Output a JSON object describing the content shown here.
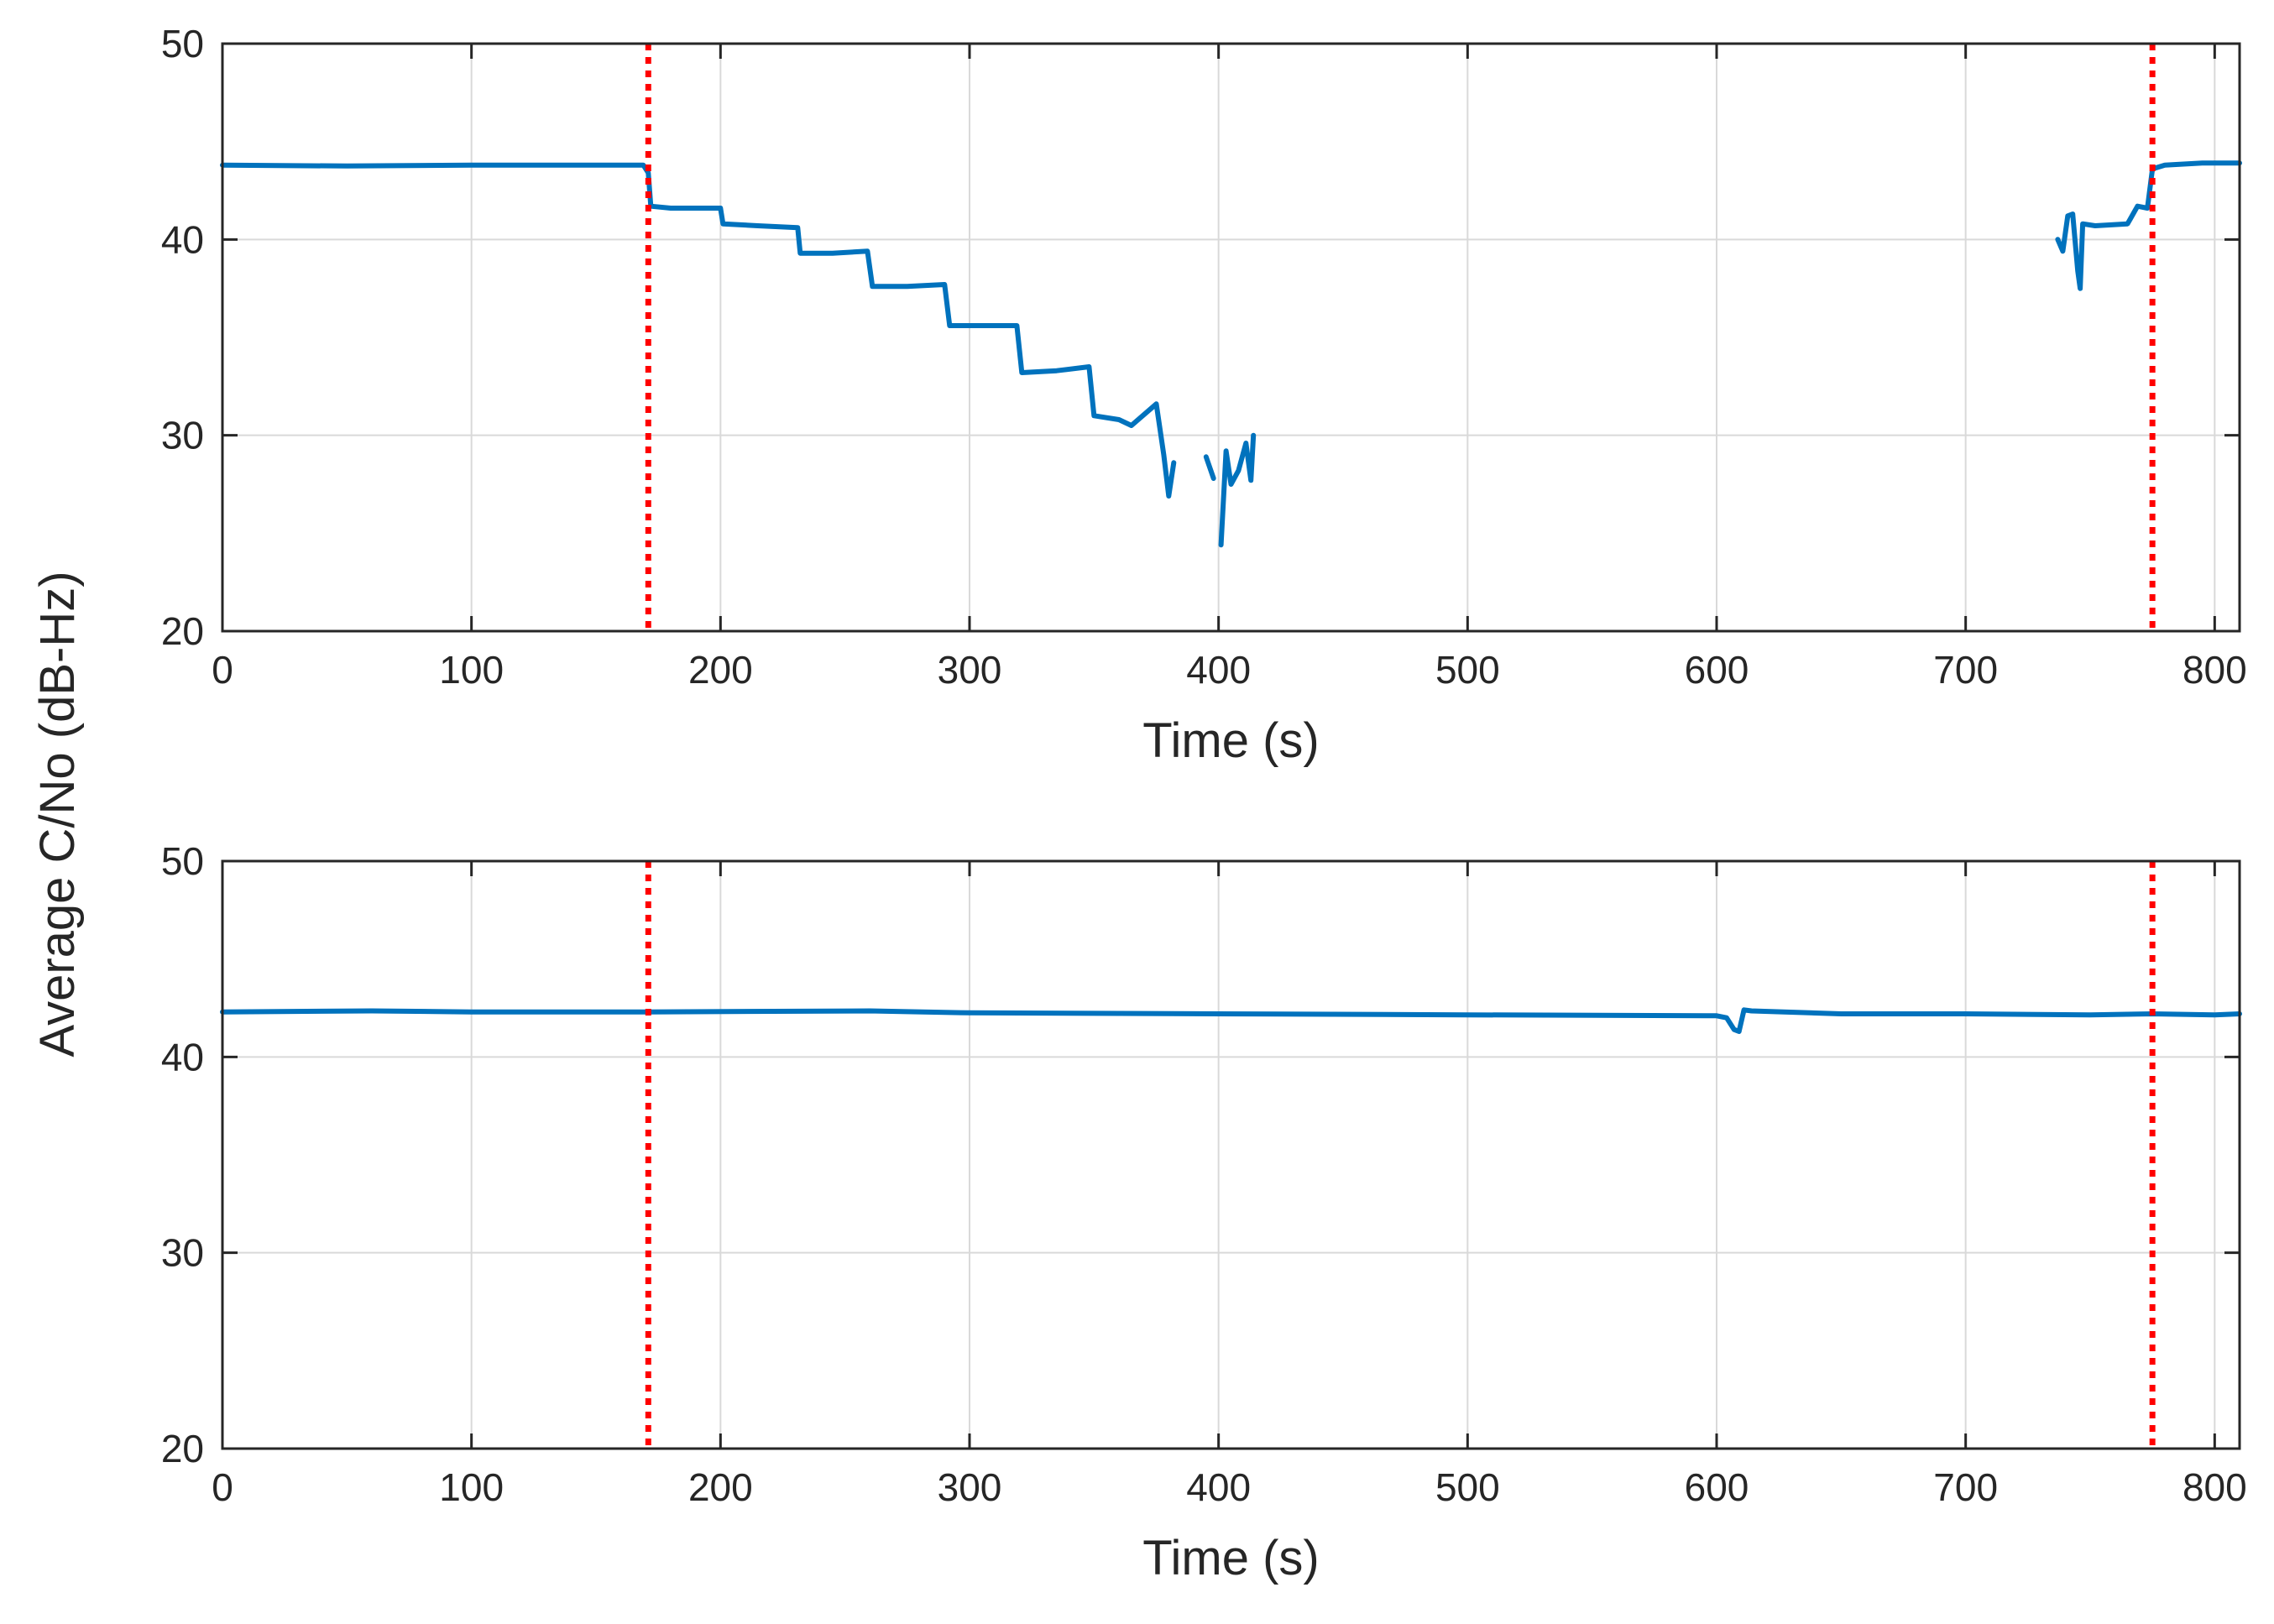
{
  "figure": {
    "ylabel": "Average C/No (dB-Hz)",
    "series_color": "#0072bd",
    "event_color": "#ff0000"
  },
  "chart_data": [
    {
      "type": "line",
      "id": "top",
      "title": "",
      "xlabel": "Time (s)",
      "ylabel": "Average C/No (dB-Hz)",
      "xlim": [
        0,
        810
      ],
      "ylim": [
        20,
        50
      ],
      "xticks": [
        0,
        100,
        200,
        300,
        400,
        500,
        600,
        700,
        800
      ],
      "yticks": [
        20,
        30,
        40,
        50
      ],
      "grid": true,
      "event_lines_x": [
        171,
        775
      ],
      "series": [
        {
          "name": "C/No",
          "segments": [
            [
              [
                0,
                43.8
              ],
              [
                50,
                43.75
              ],
              [
                100,
                43.8
              ],
              [
                150,
                43.8
              ],
              [
                169,
                43.8
              ],
              [
                171,
                43.4
              ],
              [
                172,
                41.7
              ],
              [
                180,
                41.6
              ],
              [
                190,
                41.6
              ],
              [
                200,
                41.6
              ],
              [
                201,
                40.8
              ],
              [
                215,
                40.7
              ],
              [
                231,
                40.6
              ],
              [
                232,
                39.3
              ],
              [
                245,
                39.3
              ],
              [
                259,
                39.4
              ],
              [
                261,
                37.6
              ],
              [
                275,
                37.6
              ],
              [
                290,
                37.7
              ],
              [
                292,
                35.6
              ],
              [
                305,
                35.6
              ],
              [
                319,
                35.6
              ],
              [
                321,
                33.2
              ],
              [
                335,
                33.3
              ],
              [
                348,
                33.5
              ],
              [
                350,
                31.0
              ],
              [
                360,
                30.8
              ],
              [
                365,
                30.5
              ],
              [
                375,
                31.6
              ],
              [
                378,
                29.0
              ],
              [
                380,
                26.9
              ],
              [
                382,
                28.6
              ]
            ],
            [
              [
                395,
                28.9
              ],
              [
                398,
                27.8
              ]
            ],
            [
              [
                401,
                24.4
              ],
              [
                403,
                29.2
              ],
              [
                405,
                27.5
              ],
              [
                408,
                28.2
              ],
              [
                411,
                29.6
              ],
              [
                413,
                27.7
              ],
              [
                414,
                30.0
              ]
            ],
            [
              [
                737,
                40.0
              ],
              [
                739,
                39.4
              ],
              [
                741,
                41.2
              ],
              [
                743,
                41.3
              ],
              [
                745,
                38.4
              ],
              [
                746,
                37.5
              ],
              [
                747,
                40.8
              ],
              [
                752,
                40.7
              ],
              [
                765,
                40.8
              ],
              [
                769,
                41.7
              ],
              [
                773,
                41.6
              ],
              [
                775,
                43.6
              ],
              [
                780,
                43.8
              ],
              [
                795,
                43.9
              ],
              [
                810,
                43.9
              ]
            ]
          ]
        }
      ]
    },
    {
      "type": "line",
      "id": "bottom",
      "title": "",
      "xlabel": "Time (s)",
      "ylabel": "Average C/No (dB-Hz)",
      "xlim": [
        0,
        810
      ],
      "ylim": [
        20,
        50
      ],
      "xticks": [
        0,
        100,
        200,
        300,
        400,
        500,
        600,
        700,
        800
      ],
      "yticks": [
        20,
        30,
        40,
        50
      ],
      "grid": true,
      "event_lines_x": [
        171,
        775
      ],
      "series": [
        {
          "name": "C/No",
          "segments": [
            [
              [
                0,
                42.3
              ],
              [
                60,
                42.35
              ],
              [
                100,
                42.3
              ],
              [
                171,
                42.3
              ],
              [
                260,
                42.35
              ],
              [
                300,
                42.25
              ],
              [
                400,
                42.2
              ],
              [
                500,
                42.15
              ],
              [
                600,
                42.1
              ],
              [
                604,
                42.0
              ],
              [
                607,
                41.4
              ],
              [
                609,
                41.3
              ],
              [
                611,
                42.4
              ],
              [
                614,
                42.35
              ],
              [
                650,
                42.2
              ],
              [
                700,
                42.2
              ],
              [
                750,
                42.15
              ],
              [
                775,
                42.2
              ],
              [
                800,
                42.15
              ],
              [
                810,
                42.2
              ]
            ]
          ]
        }
      ]
    }
  ]
}
